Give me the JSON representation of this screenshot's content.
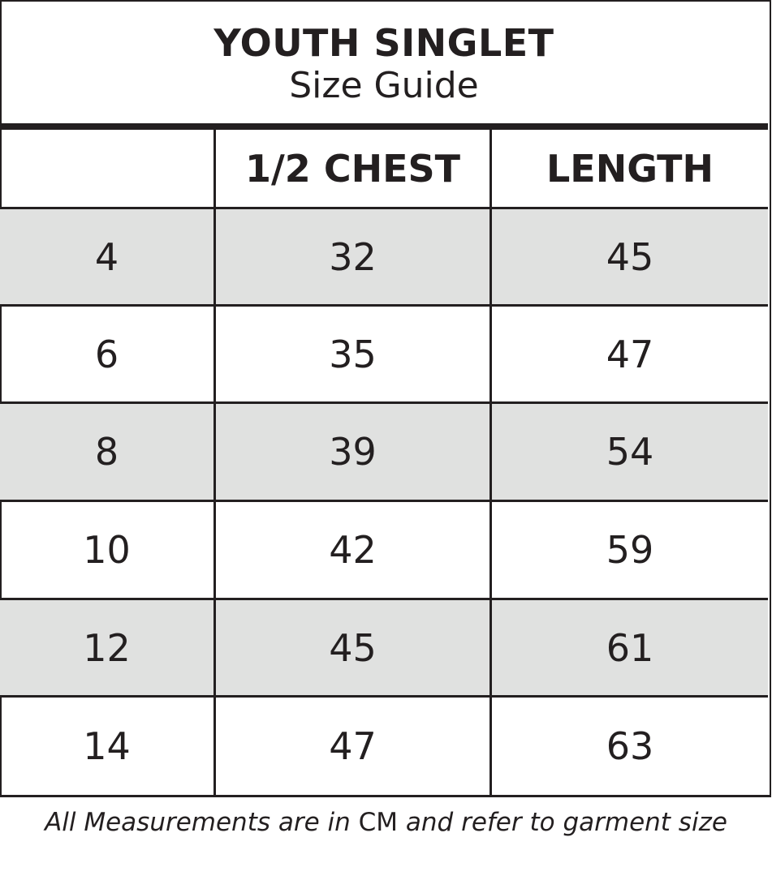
{
  "title": "YOUTH SINGLET",
  "subtitle": "Size Guide",
  "table": {
    "headers": [
      "",
      "1/2 CHEST",
      "LENGTH"
    ],
    "rows": [
      [
        "4",
        "32",
        "45"
      ],
      [
        "6",
        "35",
        "47"
      ],
      [
        "8",
        "39",
        "54"
      ],
      [
        "10",
        "42",
        "59"
      ],
      [
        "12",
        "45",
        "61"
      ],
      [
        "14",
        "47",
        "63"
      ]
    ]
  },
  "footer": {
    "pre": "All Measurements are in ",
    "unit": "CM",
    "post": " and refer to garment size"
  },
  "colors": {
    "line": "#231f20",
    "stripe": "#e0e1e0"
  }
}
